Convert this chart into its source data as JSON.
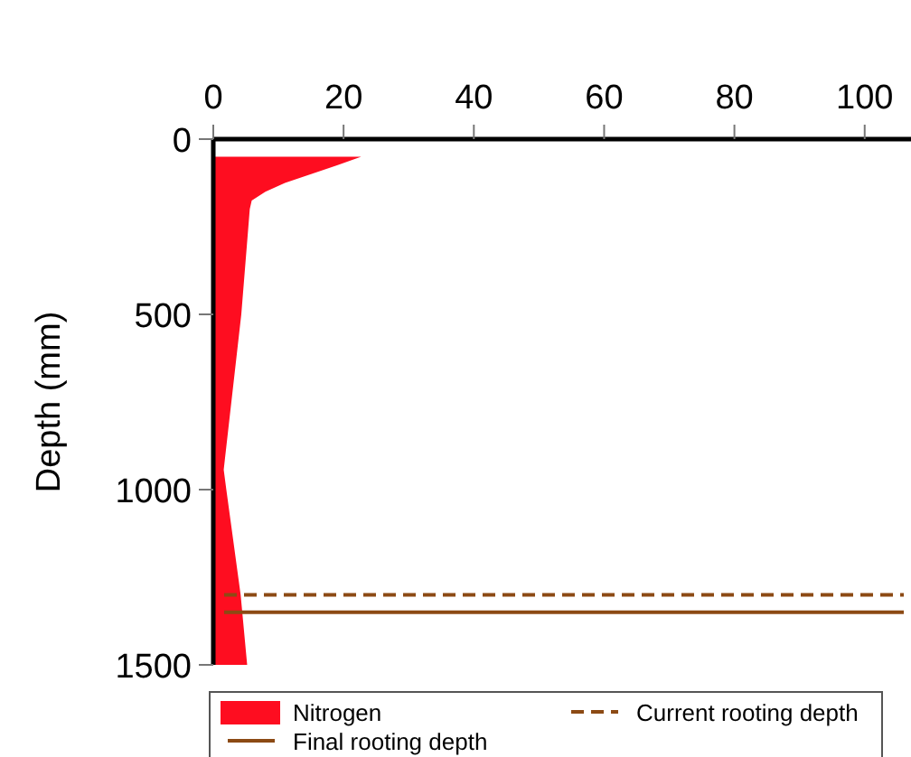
{
  "chart_data": {
    "type": "area",
    "orientation": "horizontal",
    "ylabel": "Depth (mm)",
    "x": [
      50,
      75,
      100,
      125,
      150,
      175,
      200,
      500,
      943,
      1000,
      1300,
      1500
    ],
    "series": [
      {
        "name": "Nitrogen",
        "color": "#fe0d20",
        "values": [
          22.7,
          19,
          15,
          11,
          8,
          5.9,
          5.6,
          4.3,
          1.6,
          2,
          4.2,
          5.2
        ]
      }
    ],
    "xlim": [
      0,
      106
    ],
    "xticks": [
      0,
      20,
      40,
      60,
      80,
      100
    ],
    "ylim": [
      1500,
      0
    ],
    "yticks": [
      0,
      500,
      1000,
      1500
    ],
    "ref_lines": [
      {
        "axis": "y",
        "value": 1300,
        "label": "Current rooting depth",
        "color": "#8c4a14",
        "line_style": "dashed"
      },
      {
        "axis": "y",
        "value": 1350,
        "label": "Final rooting depth",
        "color": "#8c4a14",
        "line_style": "solid"
      }
    ],
    "legend": "bottom",
    "grid": false
  }
}
